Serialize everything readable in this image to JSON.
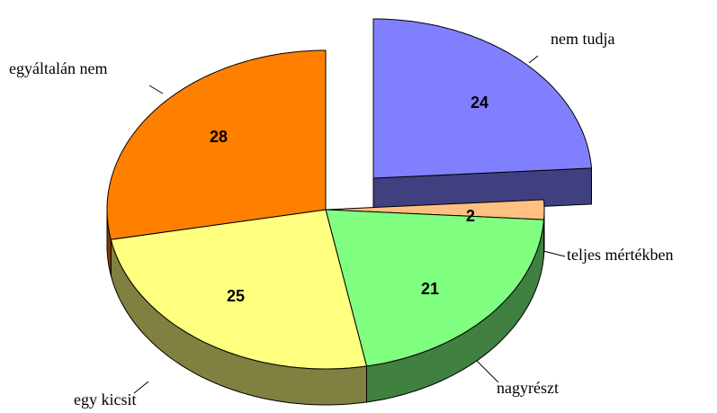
{
  "chart_data": {
    "type": "pie3d",
    "categories": [
      "nem tudja",
      "teljes mértékben",
      "nagyrészt",
      "egy kicsit",
      "egyáltalán nem"
    ],
    "values": [
      24,
      2,
      21,
      25,
      28
    ],
    "colors": [
      "#8080ff",
      "#ffc080",
      "#80ff80",
      "#ffff80",
      "#ff8000"
    ],
    "explode": [
      true,
      false,
      false,
      false,
      false
    ]
  }
}
